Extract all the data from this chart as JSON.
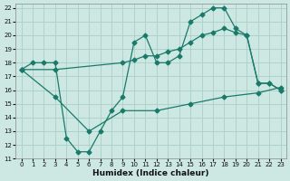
{
  "xlabel": "Humidex (Indice chaleur)",
  "bg_color": "#cde8e3",
  "grid_color": "#aacfc8",
  "line_color": "#1a7a6a",
  "xlim_min": -0.5,
  "xlim_max": 23.5,
  "ylim_min": 11,
  "ylim_max": 22.3,
  "xticks": [
    0,
    1,
    2,
    3,
    4,
    5,
    6,
    7,
    8,
    9,
    10,
    11,
    12,
    13,
    14,
    15,
    16,
    17,
    18,
    19,
    20,
    21,
    22,
    23
  ],
  "yticks": [
    11,
    12,
    13,
    14,
    15,
    16,
    17,
    18,
    19,
    20,
    21,
    22
  ],
  "line1_x": [
    0,
    1,
    2,
    3,
    4,
    5,
    6,
    7,
    8,
    9,
    10,
    11,
    12,
    13,
    14,
    15,
    16,
    17,
    18,
    19,
    20,
    21,
    22,
    23
  ],
  "line1_y": [
    17.5,
    18.0,
    18.0,
    18.0,
    12.5,
    11.5,
    11.5,
    13.0,
    14.5,
    15.5,
    19.5,
    20.0,
    18.0,
    18.0,
    18.5,
    21.0,
    21.5,
    22.0,
    22.0,
    20.5,
    20.0,
    16.5,
    16.5,
    16.0
  ],
  "line2_x": [
    0,
    3,
    9,
    10,
    11,
    12,
    13,
    14,
    15,
    16,
    17,
    18,
    19,
    20,
    21,
    22,
    23
  ],
  "line2_y": [
    17.5,
    17.5,
    18.0,
    18.2,
    18.5,
    18.5,
    18.8,
    19.0,
    19.5,
    20.0,
    20.2,
    20.5,
    20.2,
    20.0,
    16.5,
    16.5,
    16.0
  ],
  "line3_x": [
    0,
    3,
    6,
    9,
    12,
    15,
    18,
    21,
    23
  ],
  "line3_y": [
    17.5,
    15.5,
    13.0,
    14.5,
    14.5,
    15.0,
    15.5,
    15.8,
    16.2
  ],
  "marker_size": 2.5,
  "linewidth": 0.9,
  "tick_fontsize": 5.0,
  "xlabel_fontsize": 6.5
}
